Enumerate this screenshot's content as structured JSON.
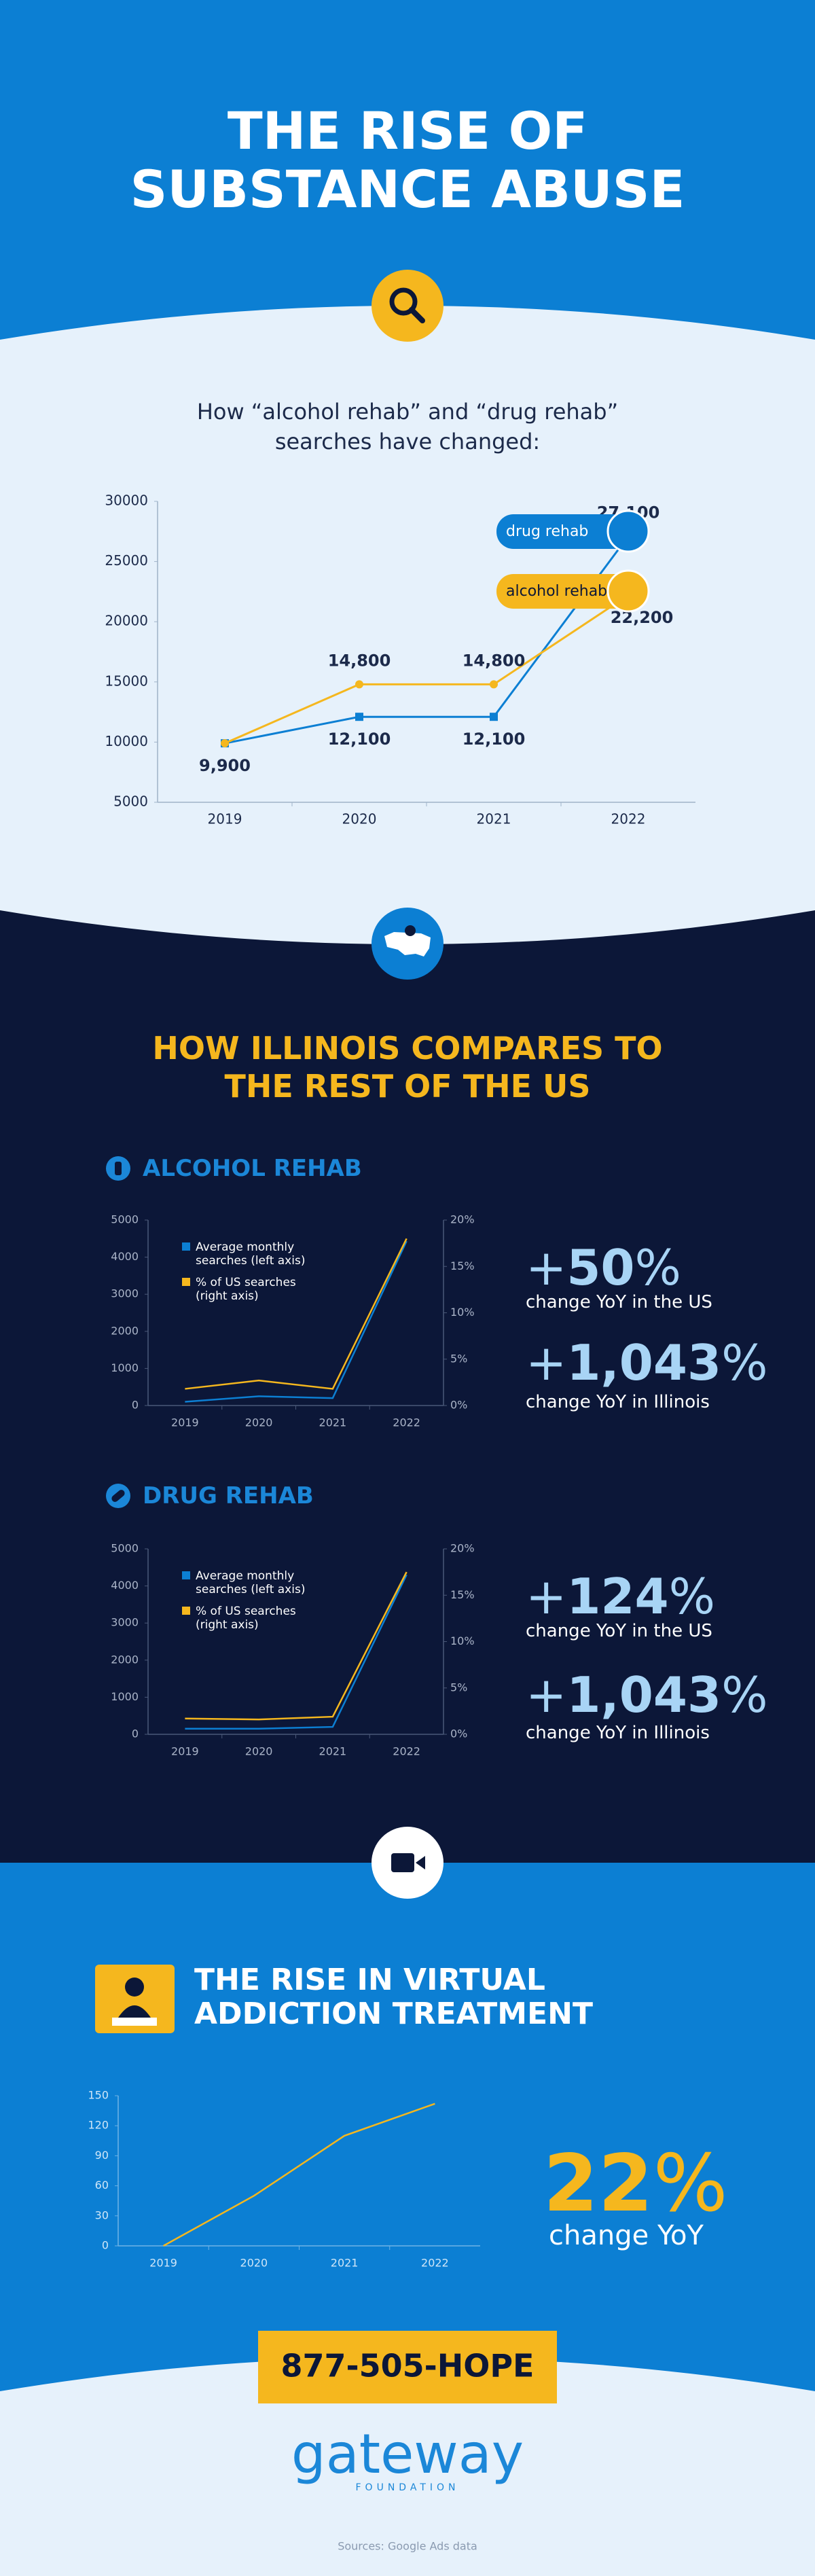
{
  "header": {
    "title": "THE RISE OF SUBSTANCE ABUSE"
  },
  "chart_data": [
    {
      "type": "line",
      "title": "How “alcohol rehab” and “drug rehab” searches have changed:",
      "categories": [
        "2019",
        "2020",
        "2021",
        "2022"
      ],
      "series": [
        {
          "name": "drug rehab",
          "color": "#0c7fd3",
          "marker": "square",
          "values": [
            9900,
            12100,
            12100,
            27100
          ],
          "value_labels": [
            "9,900",
            "12,100",
            "12,100",
            "27,100"
          ]
        },
        {
          "name": "alcohol rehab",
          "color": "#f5b71e",
          "marker": "circle",
          "values": [
            9900,
            14800,
            14800,
            22200
          ],
          "value_labels": [
            null,
            "14,800",
            "14,800",
            "22,200"
          ]
        }
      ],
      "ylim": [
        5000,
        30000
      ],
      "yticks": [
        5000,
        10000,
        15000,
        20000,
        25000,
        30000
      ],
      "grid": false,
      "legend": "upper-right"
    },
    {
      "type": "line",
      "title": "ALCOHOL REHAB",
      "categories": [
        "2019",
        "2020",
        "2021",
        "2022"
      ],
      "series": [
        {
          "name": "Average monthly searches (left axis)",
          "color": "#0c7fd3",
          "values": [
            100,
            250,
            200,
            4430
          ]
        },
        {
          "name": "% of US searches (right axis)",
          "color": "#f5b71e",
          "axis": "y2",
          "values": [
            1.8,
            2.7,
            1.8,
            18
          ]
        }
      ],
      "ylim": [
        0,
        5000
      ],
      "yticks": [
        0,
        1000,
        2000,
        3000,
        4000,
        5000
      ],
      "y2lim": [
        0,
        20
      ],
      "y2ticks": [
        {
          "value": 0,
          "label": "0%"
        },
        {
          "value": 5,
          "label": "5%"
        },
        {
          "value": 10,
          "label": "10%"
        },
        {
          "value": 15,
          "label": "15%"
        },
        {
          "value": 20,
          "label": "20%"
        }
      ],
      "grid": false,
      "legend": "upper-left"
    },
    {
      "type": "line",
      "title": "DRUG REHAB",
      "categories": [
        "2019",
        "2020",
        "2021",
        "2022"
      ],
      "series": [
        {
          "name": "Average monthly searches (left axis)",
          "color": "#0c7fd3",
          "values": [
            150,
            150,
            200,
            4300
          ]
        },
        {
          "name": "% of US searches (right axis)",
          "color": "#f5b71e",
          "axis": "y2",
          "values": [
            1.7,
            1.6,
            1.9,
            17.5
          ]
        }
      ],
      "ylim": [
        0,
        5000
      ],
      "yticks": [
        0,
        1000,
        2000,
        3000,
        4000,
        5000
      ],
      "y2lim": [
        0,
        20
      ],
      "y2ticks": [
        {
          "value": 0,
          "label": "0%"
        },
        {
          "value": 5,
          "label": "5%"
        },
        {
          "value": 10,
          "label": "10%"
        },
        {
          "value": 15,
          "label": "15%"
        },
        {
          "value": 20,
          "label": "20%"
        }
      ],
      "grid": false,
      "legend": "upper-left"
    },
    {
      "type": "line",
      "title": "THE RISE IN VIRTUAL ADDICTION TREATMENT",
      "categories": [
        "2019",
        "2020",
        "2021",
        "2022"
      ],
      "values": [
        0,
        50,
        110,
        142
      ],
      "color": "#f5b71e",
      "ylim": [
        0,
        150
      ],
      "yticks": [
        0,
        30,
        60,
        90,
        120,
        150
      ],
      "grid": false
    }
  ],
  "comparison": {
    "title": "HOW ILLINOIS COMPARES TO THE REST OF THE US",
    "stats": [
      [
        {
          "prefix": "+",
          "number": "50",
          "suffix": "%",
          "label": "change YoY in the US"
        },
        {
          "prefix": "+",
          "number": "1,043",
          "suffix": "%",
          "label": "change YoY in Illinois"
        }
      ],
      [
        {
          "prefix": "+",
          "number": "124",
          "suffix": "%",
          "label": "change YoY in the US"
        },
        {
          "prefix": "+",
          "number": "1,043",
          "suffix": "%",
          "label": "change YoY in Illinois"
        }
      ]
    ]
  },
  "virtual": {
    "stat": {
      "number": "22",
      "suffix": "%",
      "label": "change YoY"
    }
  },
  "footer": {
    "phone": "877-505-HOPE",
    "logo": "gateway",
    "logo_sub": "FOUNDATION",
    "sources": "Sources: Google Ads data"
  }
}
